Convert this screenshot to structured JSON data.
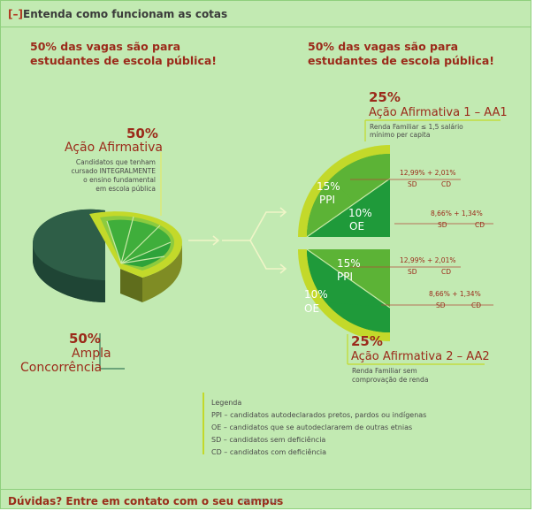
{
  "header": {
    "toggle_label": "[–]",
    "title": "Entenda como funcionam as cotas"
  },
  "infographic": {
    "left": {
      "heading_line1": "50% das vagas são para",
      "heading_line2": "estudantes de escola pública!",
      "aa_percent": "50%",
      "aa_title": "Ação Afirmativa",
      "aa_desc_lines": [
        "Candidatos que tenham",
        "cursado INTEGRALMENTE",
        "o ensino fundamental",
        "em escola pública"
      ],
      "ampla_percent": "50%",
      "ampla_line1": "Ampla",
      "ampla_line2": "Concorrência"
    },
    "right": {
      "heading_line1": "50% das vagas são para",
      "heading_line2": "estudantes de escola pública!",
      "aa1": {
        "percent": "25%",
        "title": "Ação Afirmativa 1 – AA1",
        "desc_line1": "Renda Familiar ≤ 1,5 salário",
        "desc_line2": "mínimo per capita",
        "ppi_percent": "15%",
        "ppi_label": "PPI",
        "oe_percent": "10%",
        "oe_label": "OE",
        "ppi_split": "12,99% + 2,01%",
        "oe_split": "8,66% + 1,34%"
      },
      "aa2": {
        "percent": "25%",
        "title": "Ação Afirmativa 2 – AA2",
        "desc_line1": "Renda Familiar sem",
        "desc_line2": "comprovação de renda",
        "ppi_percent": "15%",
        "ppi_label": "PPI",
        "oe_percent": "10%",
        "oe_label": "OE",
        "ppi_split": "12,99% + 2,01%",
        "oe_split": "8,66% + 1,34%"
      },
      "sd": "SD",
      "cd": "CD"
    },
    "legend": {
      "title": "Legenda",
      "items": [
        "PPI – candidatos autodeclarados pretos, pardos ou indígenas",
        "OE – candidatos que se autodeclararem de outras etnias",
        "SD – candidatos sem deficiência",
        "CD – candidatos com deficiência"
      ]
    }
  },
  "footer": {
    "link_label": "Dúvidas? Entre em contato com o seu campus",
    "file_meta": "PDF, 71 KB"
  },
  "colors": {
    "background": "#c2eab2",
    "accent_red": "#9b2a1a",
    "lime": "#c3d92a",
    "green_mid": "#5cb336",
    "green_dark": "#1f9a3a",
    "slate": "#2e5a45"
  }
}
